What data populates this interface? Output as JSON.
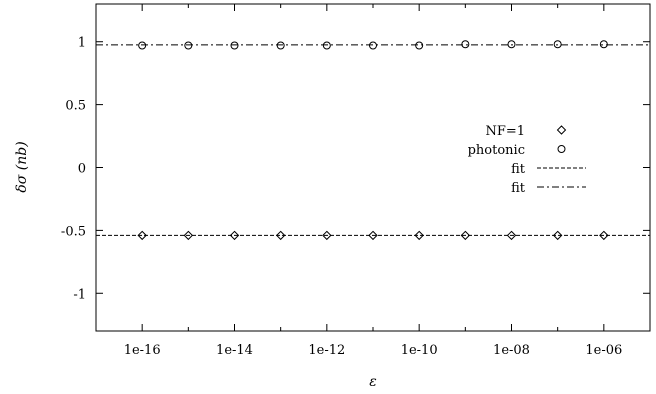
{
  "chart_data": {
    "type": "scatter",
    "xlabel": "ε",
    "ylabel": "δσ (nb)",
    "xscale": "log",
    "xlim": [
      1e-17,
      1e-05
    ],
    "ylim": [
      -1.3,
      1.3
    ],
    "x_ticks": [
      {
        "value": 1e-16,
        "label": "1e-16"
      },
      {
        "value": 1e-14,
        "label": "1e-14"
      },
      {
        "value": 1e-12,
        "label": "1e-12"
      },
      {
        "value": 1e-10,
        "label": "1e-10"
      },
      {
        "value": 1e-08,
        "label": "1e-08"
      },
      {
        "value": 1e-06,
        "label": "1e-06"
      }
    ],
    "y_ticks": [
      {
        "value": 1,
        "label": "1"
      },
      {
        "value": 0.5,
        "label": "0.5"
      },
      {
        "value": 0,
        "label": "0"
      },
      {
        "value": -0.5,
        "label": "-0.5"
      },
      {
        "value": -1,
        "label": "-1"
      }
    ],
    "series": [
      {
        "name": "NF=1",
        "marker": "diamond",
        "x": [
          1e-16,
          1e-15,
          1e-14,
          1e-13,
          1e-12,
          1e-11,
          1e-10,
          1e-09,
          1e-08,
          1e-07,
          1e-06
        ],
        "y": [
          -0.54,
          -0.54,
          -0.54,
          -0.54,
          -0.54,
          -0.54,
          -0.54,
          -0.54,
          -0.54,
          -0.54,
          -0.54
        ]
      },
      {
        "name": "photonic",
        "marker": "circle",
        "x": [
          1e-16,
          1e-15,
          1e-14,
          1e-13,
          1e-12,
          1e-11,
          1e-10,
          1e-09,
          1e-08,
          1e-07,
          1e-06
        ],
        "y": [
          0.97,
          0.97,
          0.97,
          0.97,
          0.97,
          0.97,
          0.97,
          0.98,
          0.98,
          0.98,
          0.98
        ]
      }
    ],
    "fits": [
      {
        "name": "fit",
        "style": "dashed",
        "y": -0.54
      },
      {
        "name": "fit",
        "style": "dash-dot",
        "y": 0.975
      }
    ],
    "legend_position": "right-center",
    "grid": false
  }
}
